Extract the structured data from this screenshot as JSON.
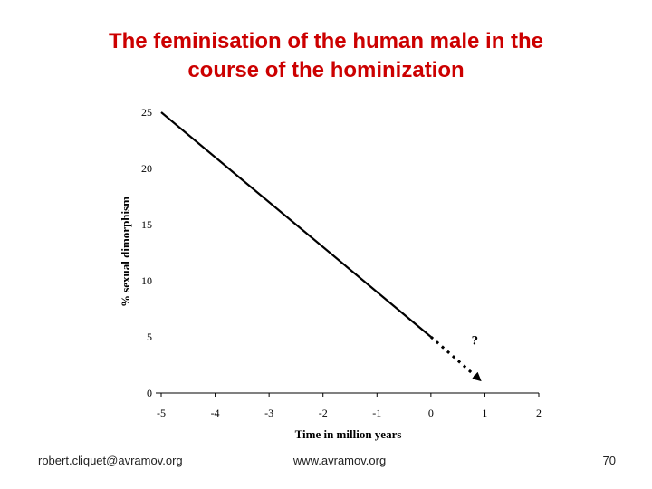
{
  "slide": {
    "title_line1": "The feminisation of the human male in the",
    "title_line2": "course of the hominization",
    "footer_left": "robert.cliquet@avramov.org",
    "footer_center": "www.avramov.org",
    "page_number": "70"
  },
  "chart_data": {
    "type": "line",
    "xlabel": "Time in million years",
    "ylabel": "% sexual dimorphism",
    "xlim": [
      -5,
      2
    ],
    "ylim": [
      0,
      25
    ],
    "x_ticks": [
      "-5",
      "-4",
      "-3",
      "-2",
      "-1",
      "0",
      "1",
      "2"
    ],
    "y_ticks": [
      "0",
      "5",
      "10",
      "15",
      "20",
      "25"
    ],
    "grid": false,
    "series": [
      {
        "style": "solid",
        "x": [
          -5,
          0
        ],
        "y": [
          25,
          5
        ]
      },
      {
        "style": "dotted-arrow",
        "x": [
          0,
          0.9
        ],
        "y": [
          5,
          1.2
        ]
      }
    ],
    "annotations": [
      {
        "text": "?",
        "x": 0.65,
        "y": 4.3
      }
    ],
    "colors": {
      "line": "#000000",
      "title": "#cc0000"
    }
  }
}
